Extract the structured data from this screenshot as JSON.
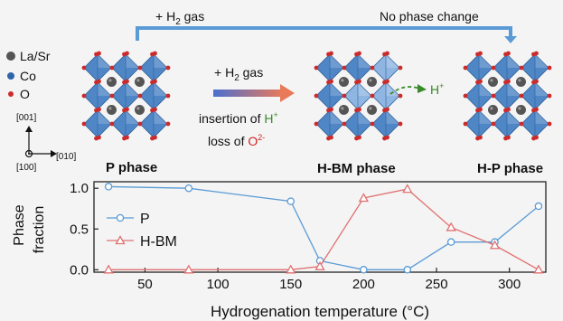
{
  "colors": {
    "octahedron_fill": "#4f86c6",
    "octahedron_dark": "#2f5f98",
    "octahedron_light": "#8fb6e2",
    "la_sr": "#555555",
    "co": "#2f64a8",
    "o": "#cc2b2b",
    "arrow_blue": "#5b9bd5",
    "p_series": "#5b9bd5",
    "hbm_series": "#e07070",
    "green": "#3a8a2a",
    "red": "#d02020"
  },
  "top": {
    "left_label_prefix": "+ H",
    "left_label_sub": "2",
    "left_label_suffix": " gas",
    "right_label": "No phase change"
  },
  "legend": [
    {
      "label": "La/Sr",
      "icon": "la-sr-dot"
    },
    {
      "label": "Co",
      "icon": "co-dot"
    },
    {
      "label": "O",
      "icon": "o-dot"
    }
  ],
  "axes_icon": {
    "up": "[001]",
    "right": "[010]",
    "out": "[100]"
  },
  "middle_arrow": {
    "gas_prefix": "+ H",
    "gas_sub": "2",
    "gas_suffix": " gas",
    "insertion_text": "insertion of ",
    "insertion_ion": "H",
    "insertion_charge": "+",
    "loss_text": "loss of ",
    "loss_ion": "O",
    "loss_charge": "2-"
  },
  "proton_label": {
    "ion": "H",
    "charge": "+"
  },
  "phases": [
    "P phase",
    "H-BM phase",
    "H-P phase"
  ],
  "chart_data": {
    "type": "line",
    "xlabel": "Hydrogenation temperature (°C)",
    "ylabel_line1": "Phase",
    "ylabel_line2": "fraction",
    "xlim": [
      15,
      325
    ],
    "ylim": [
      -0.03,
      1.08
    ],
    "xticks": [
      50,
      100,
      150,
      200,
      250,
      300
    ],
    "yticks": [
      0.0,
      0.5,
      1.0
    ],
    "ytick_labels": [
      "0.0",
      "0.5",
      "1.0"
    ],
    "series": [
      {
        "name": "P",
        "marker": "circle",
        "x": [
          25,
          80,
          150,
          170,
          200,
          230,
          260,
          290,
          320
        ],
        "y": [
          1.02,
          1.0,
          0.84,
          0.11,
          0.0,
          0.0,
          0.34,
          0.34,
          0.78
        ]
      },
      {
        "name": "H-BM",
        "marker": "triangle",
        "x": [
          25,
          80,
          150,
          170,
          200,
          230,
          260,
          290,
          320
        ],
        "y": [
          0.0,
          0.0,
          0.0,
          0.04,
          0.88,
          0.99,
          0.52,
          0.3,
          0.0
        ]
      }
    ],
    "legend_position": "left"
  }
}
